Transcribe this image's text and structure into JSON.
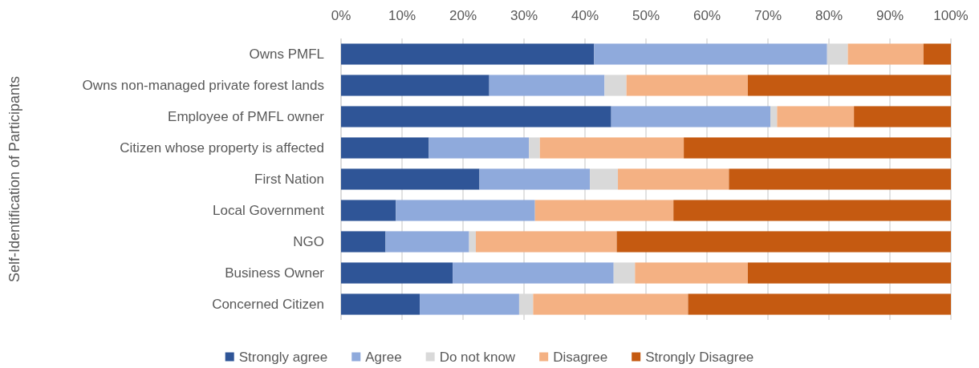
{
  "chart_data": {
    "type": "bar",
    "orientation": "horizontal",
    "stacked": true,
    "ylabel": "Self-Identification of Participants",
    "categories": [
      "Owns PMFL",
      "Owns non-managed private forest lands",
      "Employee of PMFL owner",
      "Citizen whose property is affected",
      "First Nation",
      "Local Government",
      "NGO",
      "Business Owner",
      "Concerned Citizen"
    ],
    "series": [
      {
        "name": "Strongly agree",
        "color": "#2f5597",
        "values": [
          41.5,
          24.3,
          44.3,
          14.4,
          22.7,
          9.0,
          7.3,
          18.3,
          12.9
        ]
      },
      {
        "name": "Agree",
        "color": "#8faadc",
        "values": [
          38.2,
          18.9,
          26.1,
          16.4,
          18.1,
          22.8,
          13.7,
          26.4,
          16.3
        ]
      },
      {
        "name": "Do not know",
        "color": "#d9d9d9",
        "values": [
          3.4,
          3.6,
          1.1,
          1.8,
          4.6,
          0,
          1.1,
          3.5,
          2.3
        ]
      },
      {
        "name": "Disagree",
        "color": "#f4b183",
        "values": [
          12.4,
          19.9,
          12.6,
          23.6,
          18.2,
          22.7,
          23.1,
          18.5,
          25.4
        ]
      },
      {
        "name": "Strongly Disagree",
        "color": "#c55a11",
        "values": [
          4.5,
          33.3,
          15.9,
          43.8,
          36.4,
          45.5,
          54.8,
          33.3,
          43.1
        ]
      }
    ],
    "xlim": [
      0,
      100
    ],
    "xticks": [
      {
        "value": 0,
        "label": "0%"
      },
      {
        "value": 10,
        "label": "10%"
      },
      {
        "value": 20,
        "label": "20%"
      },
      {
        "value": 30,
        "label": "30%"
      },
      {
        "value": 40,
        "label": "40%"
      },
      {
        "value": 50,
        "label": "50%"
      },
      {
        "value": 60,
        "label": "60%"
      },
      {
        "value": 70,
        "label": "70%"
      },
      {
        "value": 80,
        "label": "80%"
      },
      {
        "value": 90,
        "label": "90%"
      },
      {
        "value": 100,
        "label": "100%"
      }
    ],
    "grid": "x",
    "legend": "bottom"
  }
}
